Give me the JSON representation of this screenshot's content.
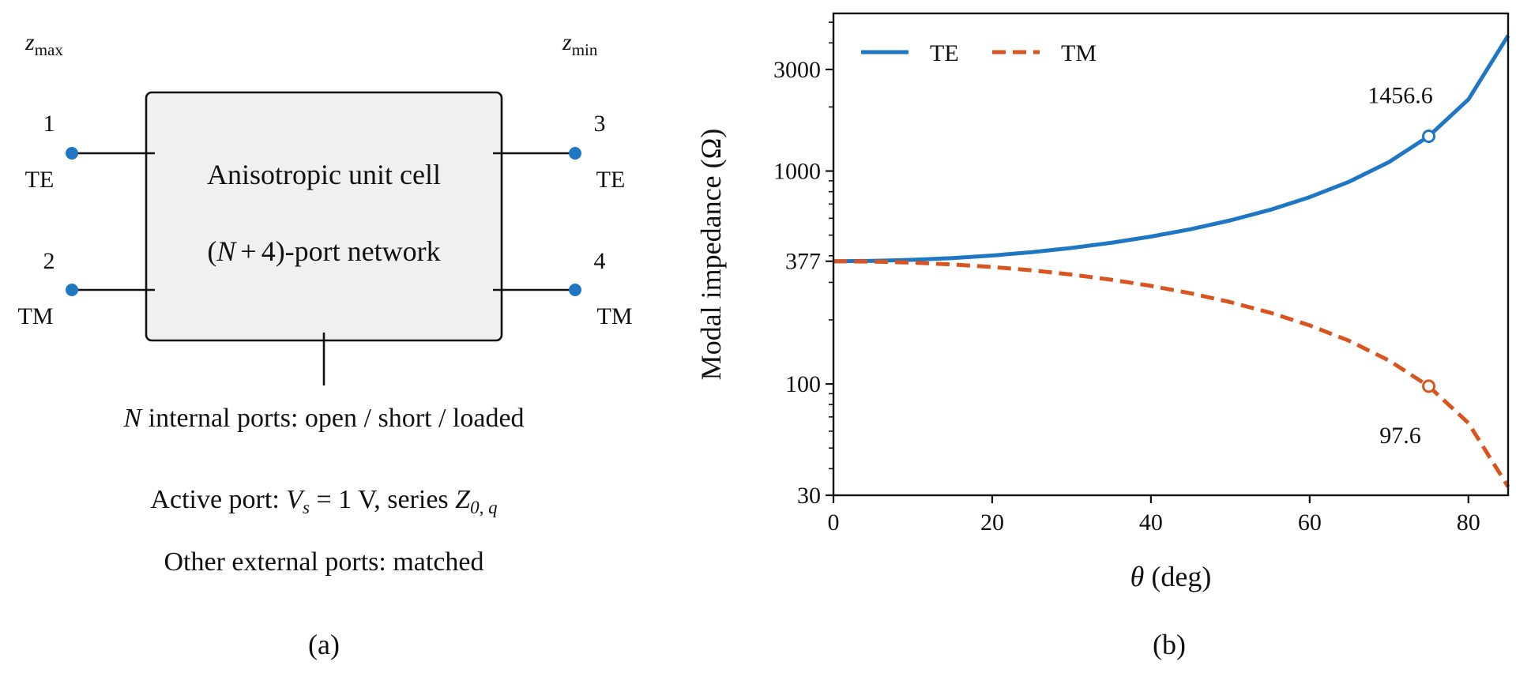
{
  "colors": {
    "te": "#1f77c4",
    "tm": "#d9541e",
    "box_fill": "#f0f0f0",
    "ink": "#111111"
  },
  "panel_a": {
    "caption": "(a)",
    "z_max": {
      "base": "z",
      "sub": "max"
    },
    "z_min": {
      "base": "z",
      "sub": "min"
    },
    "ports": [
      {
        "number": "1",
        "mode": "TE"
      },
      {
        "number": "2",
        "mode": "TM"
      },
      {
        "number": "3",
        "mode": "TE"
      },
      {
        "number": "4",
        "mode": "TM"
      }
    ],
    "box_line1": "Anisotropic unit cell",
    "box_line2": {
      "open": "(",
      "var": "N",
      "op": "+",
      "rest": "4)-port network"
    },
    "internal_ports": {
      "var": "N",
      "text": " internal ports: open / short / loaded"
    },
    "active_port": {
      "prefix": "Active port: ",
      "V": "V",
      "V_sub": "s",
      "mid": " = 1 V, series ",
      "Z": "Z",
      "Z_sub": "0, q"
    },
    "other_ports": "Other external ports: matched"
  },
  "panel_b": {
    "caption": "(b)"
  },
  "chart_data": {
    "type": "line",
    "xlabel": {
      "symbol": "θ",
      "text": " (deg)"
    },
    "ylabel": "Modal impedance (Ω)",
    "xlim": [
      0,
      85
    ],
    "ylim": [
      30,
      5500
    ],
    "yscale": "log",
    "x_ticks": [
      "0",
      "20",
      "40",
      "60",
      "80"
    ],
    "y_ticks": [
      "30",
      "100",
      "377",
      "1000",
      "3000"
    ],
    "legend_position": "top-left",
    "series": [
      {
        "name": "TE",
        "key": "te",
        "dash": "solid",
        "x": [
          0,
          5,
          10,
          15,
          20,
          25,
          30,
          35,
          40,
          45,
          50,
          55,
          60,
          65,
          70,
          75,
          80,
          85
        ],
        "y": [
          377,
          378.4,
          382.8,
          390.3,
          401.2,
          416,
          435.3,
          460.2,
          492.1,
          533.2,
          586.5,
          657.3,
          754,
          892,
          1102.3,
          1456.6,
          2171,
          4326
        ]
      },
      {
        "name": "TM",
        "key": "tm",
        "dash": "dashed",
        "x": [
          0,
          5,
          10,
          15,
          20,
          25,
          30,
          35,
          40,
          45,
          50,
          55,
          60,
          65,
          70,
          75,
          80,
          85
        ],
        "y": [
          377,
          375.6,
          371.3,
          364.2,
          354.3,
          341.7,
          326.5,
          308.8,
          288.8,
          266.6,
          242.3,
          216.2,
          188.5,
          159.3,
          128.9,
          97.6,
          65.5,
          32.9
        ]
      }
    ],
    "markers": [
      {
        "series": "te",
        "x": 75,
        "y": 1456.6,
        "label": "1456.6"
      },
      {
        "series": "tm",
        "x": 75,
        "y": 97.6,
        "label": "97.6"
      }
    ]
  }
}
